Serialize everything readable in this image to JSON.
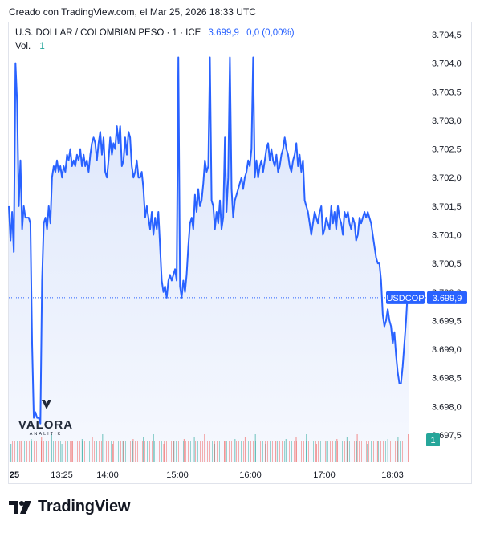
{
  "header": {
    "created_text": "Creado con TradingView.com, el Mar 25, 2026 18:33 UTC"
  },
  "legend": {
    "symbol_text": "U.S. DOLLAR / COLOMBIAN PESO · 1 · ICE",
    "price_text": "3.699,9",
    "change_text": "0,0 (0,00%)",
    "volume_label": "Vol.",
    "volume_value": "1"
  },
  "watermark": {
    "line1": "VALORA",
    "line2": "ANALITIK"
  },
  "brand": {
    "name": "TradingView"
  },
  "colors": {
    "line": "#2962ff",
    "area": "#dbe5fb",
    "volume_up": "#26a69a",
    "volume_down": "#ef5350",
    "panel_border": "#e0e3eb"
  },
  "chart_data": {
    "type": "area",
    "series": [
      {
        "name": "USDCOP",
        "y": [
          3701.5,
          3700.9,
          3701.4,
          3700.7,
          3704.0,
          3703.3,
          3701.5,
          3702.3,
          3701.1,
          3701.5,
          3701.3,
          3701.3,
          3701.3,
          3701.2,
          3699.1,
          3697.8,
          3697.9,
          3697.8,
          3697.8,
          3697.7,
          3700.2,
          3701.2,
          3701.3,
          3701.1,
          3701.5,
          3701.2,
          3702.0,
          3702.2,
          3702.1,
          3702.3,
          3702.1,
          3702.2,
          3702.0,
          3702.2,
          3702.1,
          3702.4,
          3702.3,
          3702.5,
          3702.2,
          3702.3,
          3702.2,
          3702.4,
          3702.3,
          3702.5,
          3702.2,
          3702.4,
          3702.2,
          3702.3,
          3702.1,
          3702.4,
          3702.6,
          3702.7,
          3702.6,
          3702.3,
          3702.6,
          3702.8,
          3702.4,
          3702.7,
          3702.1,
          3702.0,
          3702.3,
          3702.7,
          3702.4,
          3702.6,
          3702.5,
          3702.9,
          3702.6,
          3702.9,
          3702.2,
          3702.3,
          3702.7,
          3702.4,
          3702.8,
          3702.7,
          3702.2,
          3702.0,
          3702.1,
          3702.3,
          3702.0,
          3702.0,
          3702.1,
          3701.8,
          3701.3,
          3701.5,
          3701.3,
          3701.1,
          3701.4,
          3701.0,
          3701.3,
          3701.1,
          3701.4,
          3700.8,
          3700.2,
          3700.0,
          3700.1,
          3699.9,
          3700.2,
          3700.3,
          3700.2,
          3700.3,
          3700.4,
          3700.2,
          3704.1,
          3700.1,
          3699.9,
          3700.2,
          3700.0,
          3700.3,
          3700.8,
          3701.2,
          3701.3,
          3701.1,
          3701.7,
          3701.4,
          3701.8,
          3701.5,
          3701.6,
          3701.9,
          3702.3,
          3702.1,
          3702.2,
          3704.1,
          3701.6,
          3701.5,
          3701.1,
          3701.4,
          3701.2,
          3701.6,
          3701.1,
          3701.3,
          3702.7,
          3701.4,
          3702.0,
          3704.1,
          3701.8,
          3701.3,
          3701.6,
          3701.7,
          3701.8,
          3701.9,
          3702.0,
          3701.8,
          3702.0,
          3702.1,
          3702.3,
          3702.2,
          3702.5,
          3704.1,
          3702.0,
          3702.3,
          3702.0,
          3702.2,
          3702.3,
          3702.1,
          3702.3,
          3702.5,
          3702.6,
          3702.3,
          3702.5,
          3702.3,
          3702.2,
          3702.4,
          3702.1,
          3702.2,
          3702.4,
          3702.5,
          3702.7,
          3702.5,
          3702.4,
          3702.2,
          3702.1,
          3702.3,
          3702.4,
          3702.6,
          3702.2,
          3702.4,
          3702.1,
          3702.3,
          3701.6,
          3701.5,
          3701.4,
          3701.2,
          3701.0,
          3701.2,
          3701.4,
          3701.3,
          3701.2,
          3701.4,
          3701.5,
          3701.0,
          3701.1,
          3701.3,
          3701.2,
          3701.1,
          3701.5,
          3701.2,
          3701.4,
          3701.1,
          3701.5,
          3701.3,
          3701.2,
          3701.0,
          3701.4,
          3701.3,
          3701.4,
          3701.2,
          3701.1,
          3701.3,
          3701.2,
          3700.9,
          3701.0,
          3701.3,
          3701.2,
          3701.3,
          3701.4,
          3701.3,
          3701.4,
          3701.3,
          3701.2,
          3701.0,
          3700.8,
          3700.6,
          3700.5,
          3700.5,
          3700.2,
          3699.6,
          3699.4,
          3699.5,
          3699.7,
          3699.5,
          3699.4,
          3699.1,
          3699.3,
          3698.9,
          3698.6,
          3698.4,
          3698.4,
          3698.7,
          3699.1,
          3699.5,
          3700.0,
          3699.9
        ]
      }
    ],
    "volume": [
      {
        "v": 1,
        "up": true
      },
      {
        "v": 1,
        "up": false
      },
      {
        "v": 1,
        "up": true
      },
      {
        "v": 1,
        "up": false
      },
      {
        "v": 1,
        "up": true
      },
      {
        "v": 1,
        "up": true
      },
      {
        "v": 1,
        "up": false
      },
      {
        "v": 1,
        "up": true
      },
      {
        "v": 1,
        "up": false
      },
      {
        "v": 1,
        "up": true
      },
      {
        "v": 1,
        "up": false
      },
      {
        "v": 1,
        "up": true
      },
      {
        "v": 1,
        "up": false
      },
      {
        "v": 1,
        "up": true
      },
      {
        "v": 1,
        "up": true
      },
      {
        "v": 1,
        "up": false
      },
      {
        "v": 1,
        "up": true
      },
      {
        "v": 1,
        "up": false
      },
      {
        "v": 1,
        "up": true
      },
      {
        "v": 1,
        "up": false
      },
      {
        "v": 1,
        "up": true
      },
      {
        "v": 1,
        "up": false
      },
      {
        "v": 1,
        "up": true
      },
      {
        "v": 1,
        "up": false
      },
      {
        "v": 1,
        "up": true
      },
      {
        "v": 1,
        "up": true
      },
      {
        "v": 1,
        "up": false
      },
      {
        "v": 1,
        "up": true
      },
      {
        "v": 1,
        "up": false
      },
      {
        "v": 1,
        "up": true
      },
      {
        "v": 1,
        "up": false
      },
      {
        "v": 1,
        "up": true
      },
      {
        "v": 1,
        "up": false
      },
      {
        "v": 1,
        "up": true
      },
      {
        "v": 1,
        "up": false
      },
      {
        "v": 1,
        "up": true
      },
      {
        "v": 1,
        "up": false
      },
      {
        "v": 1,
        "up": true
      },
      {
        "v": 1,
        "up": true
      },
      {
        "v": 1,
        "up": false
      }
    ],
    "x_tick_labels": [
      "25",
      "13:25",
      "14:00",
      "15:00",
      "16:00",
      "17:00",
      "18:03"
    ],
    "y_tick_labels": [
      "3.704,5",
      "3.704,0",
      "3.703,5",
      "3.703,0",
      "3.702,5",
      "3.702,0",
      "3.701,5",
      "3.701,0",
      "3.700,5",
      "3.700,0",
      "3.699,5",
      "3.699,0",
      "3.698,5",
      "3.698,0",
      "3.697,5"
    ],
    "ylim": [
      3697.5,
      3704.5
    ],
    "last_price_label": "3.699,9",
    "symbol_label": "USDCOP",
    "volume_badge": "1"
  }
}
